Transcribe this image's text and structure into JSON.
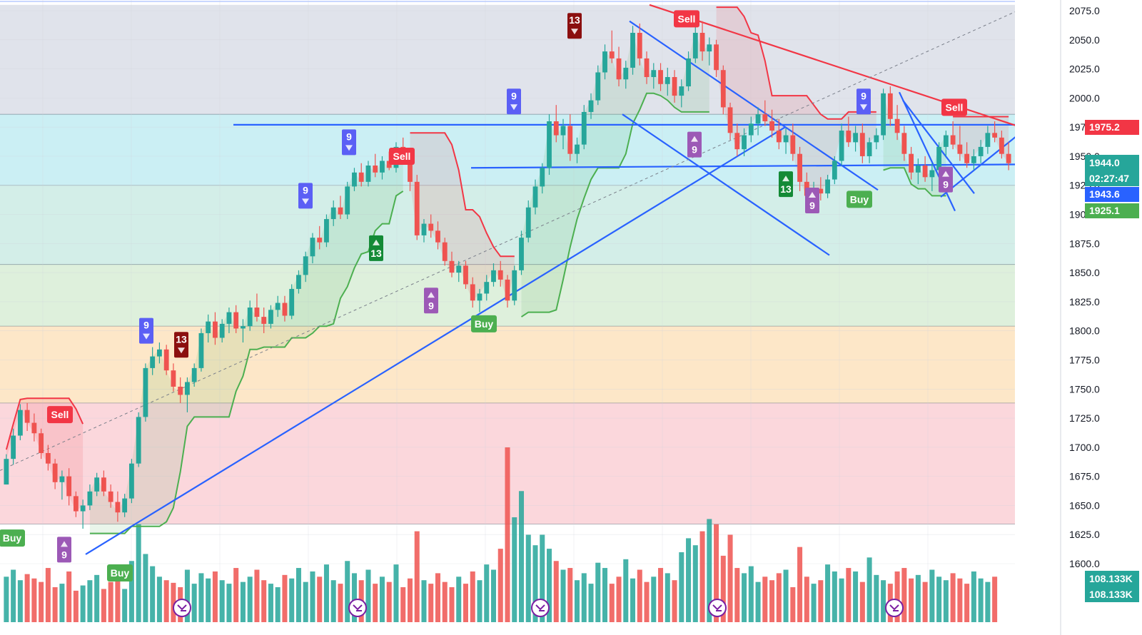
{
  "chart_data": {
    "type": "candlestick",
    "y_axis": {
      "ticks": [
        "2075.0",
        "2050.0",
        "2025.0",
        "2000.0",
        "1975.0",
        "1950.0",
        "1925.0",
        "1900.0",
        "1875.0",
        "1850.0",
        "1825.0",
        "1800.0",
        "1775.0",
        "1750.0",
        "1725.0",
        "1700.0",
        "1675.0",
        "1650.0",
        "1625.0",
        "1600.0"
      ],
      "tick_values": [
        2075,
        2050,
        2025,
        2000,
        1975,
        1950,
        1925,
        1900,
        1875,
        1850,
        1825,
        1800,
        1775,
        1750,
        1725,
        1700,
        1675,
        1650,
        1625,
        1600
      ],
      "range": [
        1585,
        2080
      ]
    },
    "price_tags": [
      {
        "value": 1975.2,
        "label": "1975.2",
        "color": "#f23645"
      },
      {
        "value": 1944.0,
        "label": "1944.0",
        "extra": "02:27:47",
        "color": "#26a69a"
      },
      {
        "value": 1943.6,
        "label": "1943.6",
        "color": "#2962ff"
      },
      {
        "value": 1925.1,
        "label": "1925.1",
        "color": "#4caf50"
      }
    ],
    "volume_labels": [
      "108.133K",
      "108.133K"
    ],
    "fib_zones": [
      {
        "from": 2080,
        "to": 1986,
        "color": "#e0e3eb"
      },
      {
        "from": 1986,
        "to": 1925,
        "color": "#cbeff4"
      },
      {
        "from": 1925,
        "to": 1857,
        "color": "#d3eee8"
      },
      {
        "from": 1857,
        "to": 1804,
        "color": "#def0dc"
      },
      {
        "from": 1804,
        "to": 1738,
        "color": "#fde7c8"
      },
      {
        "from": 1738,
        "to": 1634,
        "color": "#fbd7dc"
      }
    ],
    "fib_levels": [
      1986,
      1925,
      1857,
      1804,
      1738,
      1634
    ],
    "candles": [
      [
        1668,
        1694,
        1668,
        1690
      ],
      [
        1690,
        1716,
        1685,
        1710
      ],
      [
        1710,
        1737,
        1706,
        1732
      ],
      [
        1732,
        1738,
        1714,
        1721
      ],
      [
        1721,
        1729,
        1705,
        1712
      ],
      [
        1712,
        1716,
        1690,
        1695
      ],
      [
        1695,
        1702,
        1680,
        1686
      ],
      [
        1686,
        1690,
        1664,
        1670
      ],
      [
        1670,
        1680,
        1655,
        1675
      ],
      [
        1675,
        1682,
        1650,
        1658
      ],
      [
        1658,
        1662,
        1640,
        1645
      ],
      [
        1645,
        1655,
        1630,
        1650
      ],
      [
        1650,
        1668,
        1646,
        1662
      ],
      [
        1662,
        1678,
        1658,
        1674
      ],
      [
        1674,
        1680,
        1658,
        1662
      ],
      [
        1662,
        1668,
        1648,
        1653
      ],
      [
        1653,
        1662,
        1636,
        1644
      ],
      [
        1644,
        1660,
        1640,
        1656
      ],
      [
        1656,
        1690,
        1652,
        1686
      ],
      [
        1686,
        1730,
        1683,
        1726
      ],
      [
        1726,
        1772,
        1722,
        1768
      ],
      [
        1768,
        1786,
        1762,
        1778
      ],
      [
        1778,
        1790,
        1772,
        1784
      ],
      [
        1784,
        1788,
        1762,
        1766
      ],
      [
        1766,
        1772,
        1748,
        1752
      ],
      [
        1752,
        1760,
        1738,
        1745
      ],
      [
        1745,
        1760,
        1730,
        1756
      ],
      [
        1756,
        1772,
        1752,
        1768
      ],
      [
        1768,
        1802,
        1765,
        1798
      ],
      [
        1798,
        1814,
        1790,
        1808
      ],
      [
        1808,
        1816,
        1788,
        1794
      ],
      [
        1794,
        1810,
        1790,
        1806
      ],
      [
        1806,
        1820,
        1798,
        1816
      ],
      [
        1816,
        1822,
        1798,
        1802
      ],
      [
        1802,
        1810,
        1790,
        1804
      ],
      [
        1804,
        1826,
        1800,
        1820
      ],
      [
        1820,
        1832,
        1808,
        1812
      ],
      [
        1812,
        1820,
        1798,
        1806
      ],
      [
        1806,
        1822,
        1802,
        1818
      ],
      [
        1818,
        1830,
        1812,
        1824
      ],
      [
        1824,
        1830,
        1808,
        1813
      ],
      [
        1813,
        1840,
        1810,
        1836
      ],
      [
        1836,
        1852,
        1832,
        1848
      ],
      [
        1848,
        1868,
        1842,
        1864
      ],
      [
        1864,
        1884,
        1858,
        1880
      ],
      [
        1880,
        1890,
        1870,
        1876
      ],
      [
        1876,
        1900,
        1872,
        1896
      ],
      [
        1896,
        1912,
        1890,
        1906
      ],
      [
        1906,
        1916,
        1896,
        1900
      ],
      [
        1900,
        1928,
        1896,
        1924
      ],
      [
        1924,
        1940,
        1920,
        1936
      ],
      [
        1936,
        1944,
        1924,
        1928
      ],
      [
        1928,
        1946,
        1924,
        1942
      ],
      [
        1942,
        1952,
        1932,
        1936
      ],
      [
        1936,
        1950,
        1930,
        1946
      ],
      [
        1946,
        1954,
        1938,
        1940
      ],
      [
        1940,
        1962,
        1936,
        1958
      ],
      [
        1958,
        1966,
        1944,
        1948
      ],
      [
        1948,
        1956,
        1920,
        1928
      ],
      [
        1928,
        1934,
        1878,
        1882
      ],
      [
        1882,
        1896,
        1876,
        1892
      ],
      [
        1892,
        1900,
        1880,
        1886
      ],
      [
        1886,
        1894,
        1870,
        1876
      ],
      [
        1876,
        1880,
        1856,
        1860
      ],
      [
        1860,
        1868,
        1846,
        1850
      ],
      [
        1850,
        1860,
        1842,
        1856
      ],
      [
        1856,
        1860,
        1836,
        1840
      ],
      [
        1840,
        1846,
        1820,
        1826
      ],
      [
        1826,
        1836,
        1816,
        1832
      ],
      [
        1832,
        1848,
        1826,
        1842
      ],
      [
        1842,
        1858,
        1838,
        1852
      ],
      [
        1852,
        1860,
        1838,
        1844
      ],
      [
        1844,
        1848,
        1820,
        1826
      ],
      [
        1826,
        1856,
        1822,
        1852
      ],
      [
        1852,
        1886,
        1848,
        1880
      ],
      [
        1880,
        1912,
        1876,
        1906
      ],
      [
        1906,
        1930,
        1900,
        1924
      ],
      [
        1924,
        1944,
        1918,
        1940
      ],
      [
        1940,
        1986,
        1934,
        1980
      ],
      [
        1980,
        1994,
        1962,
        1968
      ],
      [
        1968,
        1982,
        1956,
        1976
      ],
      [
        1976,
        1986,
        1946,
        1952
      ],
      [
        1952,
        1966,
        1944,
        1960
      ],
      [
        1960,
        1994,
        1956,
        1988
      ],
      [
        1988,
        2004,
        1982,
        1998
      ],
      [
        1998,
        2028,
        1994,
        2022
      ],
      [
        2022,
        2046,
        2016,
        2040
      ],
      [
        2040,
        2058,
        2030,
        2034
      ],
      [
        2034,
        2044,
        2010,
        2016
      ],
      [
        2016,
        2032,
        2008,
        2026
      ],
      [
        2026,
        2062,
        2020,
        2056
      ],
      [
        2056,
        2064,
        2028,
        2034
      ],
      [
        2034,
        2040,
        2012,
        2018
      ],
      [
        2018,
        2030,
        2008,
        2024
      ],
      [
        2024,
        2030,
        2006,
        2012
      ],
      [
        2012,
        2026,
        2002,
        2018
      ],
      [
        2018,
        2024,
        1996,
        2002
      ],
      [
        2002,
        2016,
        1992,
        2010
      ],
      [
        2010,
        2040,
        2006,
        2034
      ],
      [
        2034,
        2074,
        2030,
        2056
      ],
      [
        2056,
        2066,
        2032,
        2040
      ],
      [
        2040,
        2052,
        2028,
        2046
      ],
      [
        2046,
        2050,
        2018,
        2024
      ],
      [
        2024,
        2028,
        1986,
        1992
      ],
      [
        1992,
        1996,
        1964,
        1970
      ],
      [
        1970,
        1978,
        1950,
        1956
      ],
      [
        1956,
        1974,
        1950,
        1968
      ],
      [
        1968,
        1984,
        1962,
        1978
      ],
      [
        1978,
        1992,
        1968,
        1986
      ],
      [
        1986,
        1998,
        1976,
        1980
      ],
      [
        1980,
        1990,
        1966,
        1972
      ],
      [
        1972,
        1982,
        1956,
        1962
      ],
      [
        1962,
        1974,
        1952,
        1968
      ],
      [
        1968,
        1978,
        1946,
        1952
      ],
      [
        1952,
        1958,
        1920,
        1928
      ],
      [
        1928,
        1936,
        1910,
        1916
      ],
      [
        1916,
        1928,
        1908,
        1922
      ],
      [
        1922,
        1932,
        1912,
        1918
      ],
      [
        1918,
        1934,
        1914,
        1930
      ],
      [
        1930,
        1950,
        1926,
        1946
      ],
      [
        1946,
        1978,
        1942,
        1972
      ],
      [
        1972,
        1984,
        1958,
        1962
      ],
      [
        1962,
        1976,
        1954,
        1970
      ],
      [
        1970,
        1978,
        1944,
        1950
      ],
      [
        1950,
        1966,
        1944,
        1962
      ],
      [
        1962,
        1974,
        1956,
        1968
      ],
      [
        1968,
        2008,
        1964,
        2004
      ],
      [
        2004,
        2010,
        1976,
        1982
      ],
      [
        1982,
        1994,
        1964,
        1970
      ],
      [
        1970,
        1976,
        1946,
        1952
      ],
      [
        1952,
        1958,
        1930,
        1936
      ],
      [
        1936,
        1948,
        1926,
        1942
      ],
      [
        1942,
        1950,
        1928,
        1932
      ],
      [
        1932,
        1944,
        1920,
        1938
      ],
      [
        1938,
        1962,
        1934,
        1958
      ],
      [
        1958,
        1972,
        1950,
        1968
      ],
      [
        1968,
        1980,
        1956,
        1960
      ],
      [
        1960,
        1976,
        1946,
        1952
      ],
      [
        1952,
        1962,
        1940,
        1944
      ],
      [
        1944,
        1956,
        1938,
        1950
      ],
      [
        1950,
        1964,
        1944,
        1958
      ],
      [
        1958,
        1976,
        1952,
        1970
      ],
      [
        1970,
        1980,
        1962,
        1966
      ],
      [
        1966,
        1972,
        1948,
        1952
      ],
      [
        1952,
        1962,
        1938,
        1944
      ]
    ],
    "volumes": [
      52,
      60,
      48,
      55,
      50,
      46,
      62,
      40,
      44,
      58,
      36,
      42,
      48,
      54,
      38,
      46,
      64,
      38,
      70,
      112,
      78,
      64,
      52,
      48,
      45,
      40,
      60,
      44,
      56,
      50,
      58,
      48,
      44,
      62,
      46,
      52,
      60,
      48,
      44,
      40,
      54,
      50,
      62,
      46,
      58,
      52,
      66,
      48,
      44,
      70,
      56,
      48,
      60,
      44,
      52,
      46,
      66,
      40,
      50,
      104,
      48,
      44,
      56,
      46,
      40,
      52,
      44,
      58,
      48,
      66,
      60,
      84,
      200,
      120,
      150,
      100,
      88,
      100,
      84,
      70,
      60,
      62,
      48,
      56,
      44,
      68,
      62,
      44,
      52,
      72,
      50,
      60,
      46,
      52,
      62,
      56,
      48,
      80,
      96,
      88,
      104,
      118,
      112,
      76,
      100,
      62,
      56,
      64,
      46,
      52,
      48,
      56,
      60,
      40,
      86,
      52,
      44,
      48,
      66,
      58,
      50,
      62,
      58,
      46,
      74,
      54,
      48,
      44,
      58,
      62,
      50,
      54,
      46,
      60,
      52,
      48,
      56,
      50,
      44,
      58,
      50,
      46,
      52
    ]
  },
  "signals": [
    {
      "text": "Sell",
      "color": "#f23645"
    },
    {
      "text": "Sell",
      "color": "#f23645"
    },
    {
      "text": "Sell",
      "color": "#f23645"
    },
    {
      "text": "Sell",
      "color": "#f23645"
    },
    {
      "text": "Buy",
      "color": "#4caf50"
    },
    {
      "text": "Buy",
      "color": "#4caf50"
    },
    {
      "text": "Buy",
      "color": "#4caf50"
    },
    {
      "text": "Buy",
      "color": "#4caf50"
    }
  ],
  "counts": [
    {
      "text": "9",
      "dir": "down",
      "color": "#5b5ff5"
    },
    {
      "text": "9",
      "dir": "down",
      "color": "#5b5ff5"
    },
    {
      "text": "9",
      "dir": "down",
      "color": "#5b5ff5"
    },
    {
      "text": "9",
      "dir": "down",
      "color": "#5b5ff5"
    },
    {
      "text": "9",
      "dir": "down",
      "color": "#5b5ff5"
    },
    {
      "text": "13",
      "dir": "down",
      "color": "#8b0f0f"
    },
    {
      "text": "13",
      "dir": "down",
      "color": "#8b0f0f"
    },
    {
      "text": "9",
      "dir": "up",
      "color": "#9c59b6"
    },
    {
      "text": "9",
      "dir": "up",
      "color": "#9c59b6"
    },
    {
      "text": "9",
      "dir": "up",
      "color": "#9c59b6"
    },
    {
      "text": "9",
      "dir": "up",
      "color": "#9c59b6"
    },
    {
      "text": "9",
      "dir": "up",
      "color": "#9c59b6"
    },
    {
      "text": "13",
      "dir": "up",
      "color": "#138a36"
    },
    {
      "text": "13",
      "dir": "up",
      "color": "#138a36"
    }
  ],
  "colors": {
    "up": "#26a69a",
    "down": "#ef5350",
    "trendline": "#2962ff",
    "resistance": "#f23645",
    "stop_up": "#4caf50",
    "stop_down": "#f23645"
  },
  "event_icons": [
    "event-icon",
    "event-icon",
    "event-icon",
    "event-icon",
    "event-icon"
  ]
}
